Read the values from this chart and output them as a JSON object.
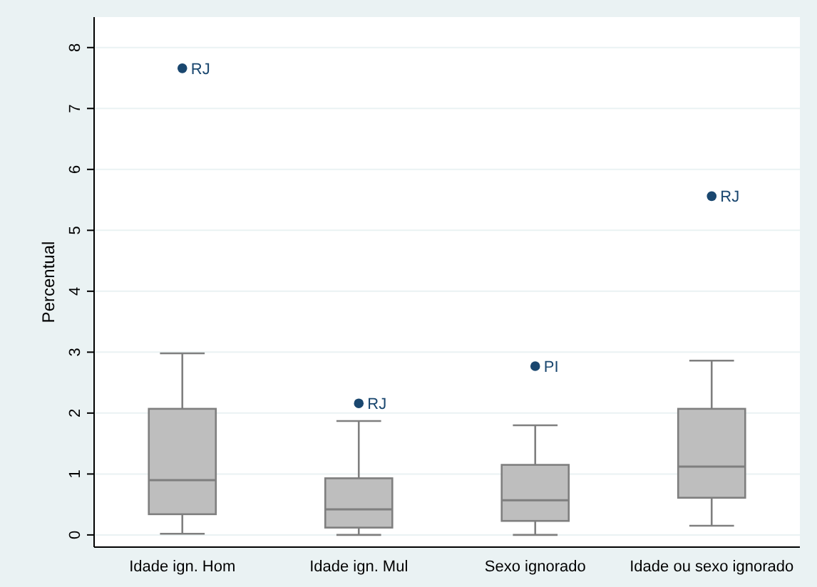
{
  "chart_data": {
    "type": "box",
    "ylabel": "Percentual",
    "categories": [
      "Idade ign. Hom",
      "Idade ign. Mul",
      "Sexo ignorado",
      "Idade ou sexo ignorado"
    ],
    "boxes": [
      {
        "low": 0.02,
        "q1": 0.34,
        "median": 0.9,
        "q3": 2.07,
        "high": 2.98,
        "outliers": [
          7.66
        ]
      },
      {
        "low": 0,
        "q1": 0.12,
        "median": 0.42,
        "q3": 0.93,
        "high": 1.87,
        "outliers": [
          2.16
        ]
      },
      {
        "low": 0,
        "q1": 0.23,
        "median": 0.57,
        "q3": 1.15,
        "high": 1.8,
        "outliers": [
          2.77
        ]
      },
      {
        "low": 0.15,
        "q1": 0.61,
        "median": 1.12,
        "q3": 2.07,
        "high": 2.86,
        "outliers": [
          5.56
        ]
      }
    ],
    "color": "#bebebe",
    "ylim": [
      -0.2,
      8.5
    ],
    "yticks": [
      0,
      1,
      2,
      3,
      4,
      5,
      6,
      7,
      8
    ],
    "grid": "y",
    "annotations": [
      "RJ",
      "RJ",
      "PI",
      "RJ"
    ]
  }
}
